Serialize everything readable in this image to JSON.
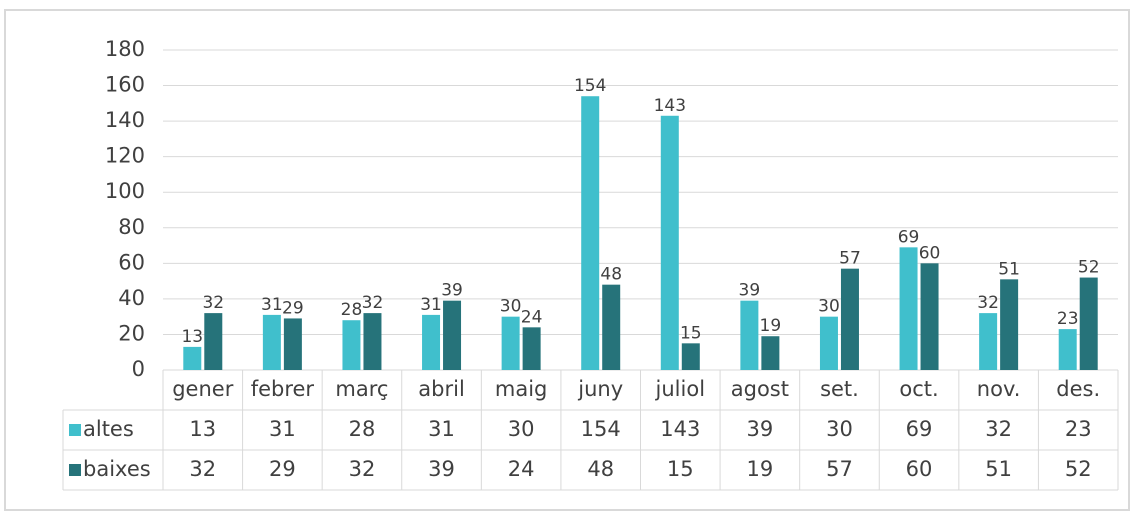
{
  "chart_data": {
    "type": "bar",
    "categories": [
      "gener",
      "febrer",
      "març",
      "abril",
      "maig",
      "juny",
      "juliol",
      "agost",
      "set.",
      "oct.",
      "nov.",
      "des."
    ],
    "series": [
      {
        "name": "altes",
        "color": "#40bfcc",
        "values": [
          13,
          31,
          28,
          31,
          30,
          154,
          143,
          39,
          30,
          69,
          32,
          23
        ]
      },
      {
        "name": "baixes",
        "color": "#26737a",
        "values": [
          32,
          29,
          32,
          39,
          24,
          48,
          15,
          19,
          57,
          60,
          51,
          52
        ]
      }
    ],
    "ylim": [
      0,
      180
    ],
    "yticks": [
      0,
      20,
      40,
      60,
      80,
      100,
      120,
      140,
      160,
      180
    ],
    "grid": true
  }
}
